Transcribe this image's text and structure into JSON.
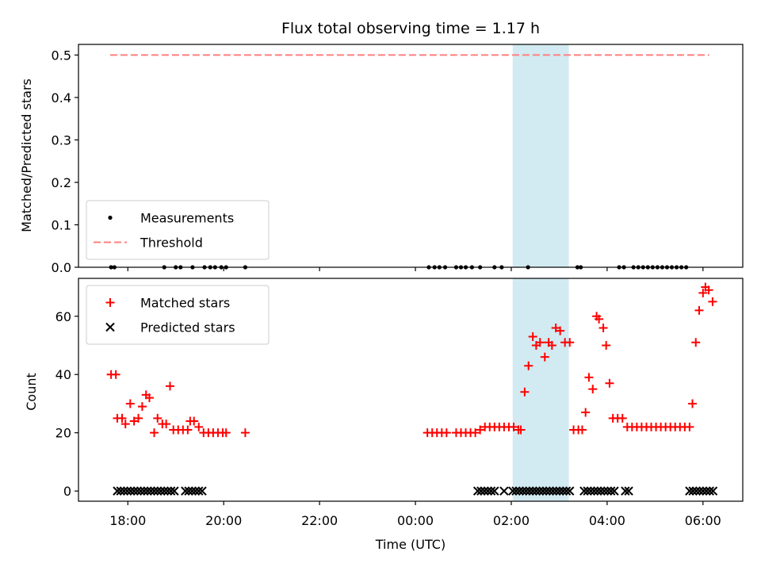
{
  "chart_data": {
    "title": "Flux total observing time = 1.17 h",
    "xlabel": "Time (UTC)",
    "x_ticks": [
      "18:00",
      "20:00",
      "22:00",
      "00:00",
      "02:00",
      "04:00",
      "06:00"
    ],
    "x_tick_hours": [
      18,
      20,
      22,
      24,
      26,
      28,
      30
    ],
    "x_range_hours": [
      16.97,
      30.83
    ],
    "shaded_span_hours": [
      26.03,
      27.2
    ],
    "shade_color": "#add8e6",
    "panels": [
      {
        "type": "scatter",
        "ylabel": "Matched/Predicted stars",
        "ylim": [
          0,
          0.525
        ],
        "y_ticks": [
          "0.0",
          "0.1",
          "0.2",
          "0.3",
          "0.4",
          "0.5"
        ],
        "y_tick_values": [
          0,
          0.1,
          0.2,
          0.3,
          0.4,
          0.5
        ],
        "legend_location": "lower-left",
        "series": [
          {
            "name": "Measurements",
            "marker": "dot",
            "color": "#000000",
            "x": [
              17.65,
              17.72,
              18.76,
              19.0,
              19.1,
              19.35,
              19.6,
              19.72,
              19.82,
              19.95,
              20.05,
              20.45,
              24.28,
              24.4,
              24.5,
              24.62,
              24.85,
              24.95,
              25.05,
              25.18,
              25.35,
              25.65,
              25.8,
              26.35,
              27.38,
              27.45,
              28.25,
              28.35,
              28.55,
              28.65,
              28.75,
              28.85,
              28.95,
              29.05,
              29.15,
              29.25,
              29.35,
              29.45,
              29.55,
              29.65
            ],
            "y": [
              0,
              0,
              0,
              0,
              0,
              0,
              0,
              0,
              0,
              0,
              0,
              0,
              0,
              0,
              0,
              0,
              0,
              0,
              0,
              0,
              0,
              0,
              0,
              0,
              0,
              0,
              0,
              0,
              0,
              0,
              0,
              0,
              0,
              0,
              0,
              0,
              0,
              0,
              0,
              0
            ]
          },
          {
            "name": "Threshold",
            "type": "line",
            "style": "dashed",
            "color": "#ff7f7f",
            "x": [
              17.63,
              30.13
            ],
            "y": [
              0.5,
              0.5
            ]
          }
        ]
      },
      {
        "type": "scatter",
        "ylabel": "Count",
        "ylim": [
          -3.5,
          73
        ],
        "y_ticks": [
          "0",
          "20",
          "40",
          "60"
        ],
        "y_tick_values": [
          0,
          20,
          40,
          60
        ],
        "legend_location": "top-left",
        "series": [
          {
            "name": "Matched stars",
            "marker": "plus",
            "color": "#ff0000",
            "x": [
              17.65,
              17.75,
              17.78,
              17.88,
              17.95,
              18.05,
              18.13,
              18.22,
              18.3,
              18.38,
              18.45,
              18.55,
              18.62,
              18.72,
              18.8,
              18.88,
              18.95,
              19.05,
              19.15,
              19.25,
              19.3,
              19.38,
              19.48,
              19.58,
              19.68,
              19.78,
              19.88,
              19.98,
              20.05,
              20.45,
              24.25,
              24.35,
              24.45,
              24.55,
              24.65,
              24.85,
              24.95,
              25.05,
              25.15,
              25.25,
              25.35,
              25.45,
              25.55,
              25.65,
              25.75,
              25.85,
              25.95,
              26.05,
              26.15,
              26.2,
              26.28,
              26.36,
              26.45,
              26.52,
              26.6,
              26.7,
              26.78,
              26.85,
              26.93,
              27.02,
              27.12,
              27.22,
              27.3,
              27.4,
              27.48,
              27.55,
              27.62,
              27.7,
              27.78,
              27.83,
              27.92,
              27.98,
              28.05,
              28.12,
              28.22,
              28.32,
              28.42,
              28.52,
              28.62,
              28.72,
              28.82,
              28.92,
              29.02,
              29.12,
              29.22,
              29.32,
              29.42,
              29.52,
              29.62,
              29.72,
              29.78,
              29.85,
              29.92,
              30.0,
              30.05,
              30.12,
              30.2
            ],
            "y": [
              40,
              40,
              25,
              25,
              23,
              30,
              24,
              25,
              29,
              33,
              32,
              20,
              25,
              23,
              23,
              36,
              21,
              21,
              21,
              21,
              24,
              24,
              22,
              20,
              20,
              20,
              20,
              20,
              20,
              20,
              20,
              20,
              20,
              20,
              20,
              20,
              20,
              20,
              20,
              20,
              21,
              22,
              22,
              22,
              22,
              22,
              22,
              22,
              21,
              21,
              34,
              43,
              53,
              50,
              51,
              46,
              51,
              50,
              56,
              55,
              51,
              51,
              21,
              21,
              21,
              27,
              39,
              35,
              60,
              59,
              56,
              50,
              37,
              25,
              25,
              25,
              22,
              22,
              22,
              22,
              22,
              22,
              22,
              22,
              22,
              22,
              22,
              22,
              22,
              22,
              30,
              51,
              62,
              68,
              70,
              69,
              65
            ]
          },
          {
            "name": "Predicted stars",
            "marker": "x",
            "color": "#000000",
            "x": [
              17.78,
              17.85,
              17.92,
              17.99,
              18.06,
              18.13,
              18.2,
              18.27,
              18.34,
              18.41,
              18.48,
              18.55,
              18.62,
              18.69,
              18.76,
              18.83,
              18.9,
              18.97,
              19.2,
              19.27,
              19.34,
              19.41,
              19.48,
              19.55,
              25.3,
              25.37,
              25.44,
              25.51,
              25.58,
              25.65,
              25.85,
              26.03,
              26.1,
              26.17,
              26.24,
              26.31,
              26.38,
              26.45,
              26.52,
              26.59,
              26.66,
              26.73,
              26.8,
              26.87,
              26.94,
              27.01,
              27.08,
              27.15,
              27.22,
              27.52,
              27.59,
              27.66,
              27.73,
              27.8,
              27.87,
              27.94,
              28.01,
              28.08,
              28.15,
              28.38,
              28.45,
              29.72,
              29.79,
              29.86,
              29.93,
              30.0,
              30.07,
              30.14,
              30.21
            ],
            "y": [
              0,
              0,
              0,
              0,
              0,
              0,
              0,
              0,
              0,
              0,
              0,
              0,
              0,
              0,
              0,
              0,
              0,
              0,
              0,
              0,
              0,
              0,
              0,
              0,
              0,
              0,
              0,
              0,
              0,
              0,
              0,
              0,
              0,
              0,
              0,
              0,
              0,
              0,
              0,
              0,
              0,
              0,
              0,
              0,
              0,
              0,
              0,
              0,
              0,
              0,
              0,
              0,
              0,
              0,
              0,
              0,
              0,
              0,
              0,
              0,
              0,
              0,
              0,
              0,
              0,
              0,
              0,
              0,
              0
            ]
          }
        ]
      }
    ]
  }
}
